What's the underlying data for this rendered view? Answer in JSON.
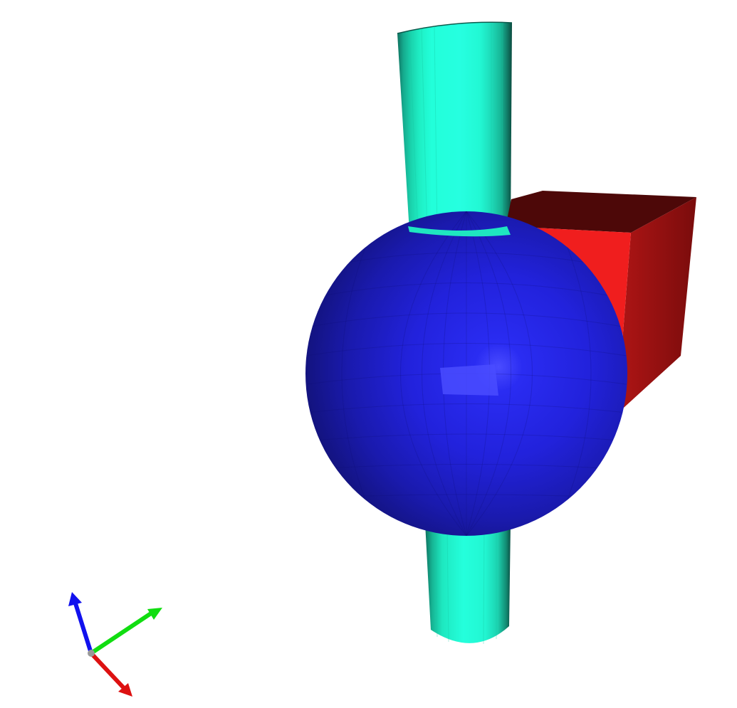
{
  "viewer": {
    "background": "#ffffff",
    "objects": [
      {
        "shape": "cylinder",
        "color": "#22ffdd"
      },
      {
        "shape": "sphere",
        "color": "#2020dd"
      },
      {
        "shape": "cube",
        "color": "#ee2020"
      }
    ],
    "axes_triad": {
      "x_axis_color": "#dd1111",
      "y_axis_color": "#11dd11",
      "z_axis_color": "#1111ee",
      "origin_color": "#999999"
    }
  }
}
